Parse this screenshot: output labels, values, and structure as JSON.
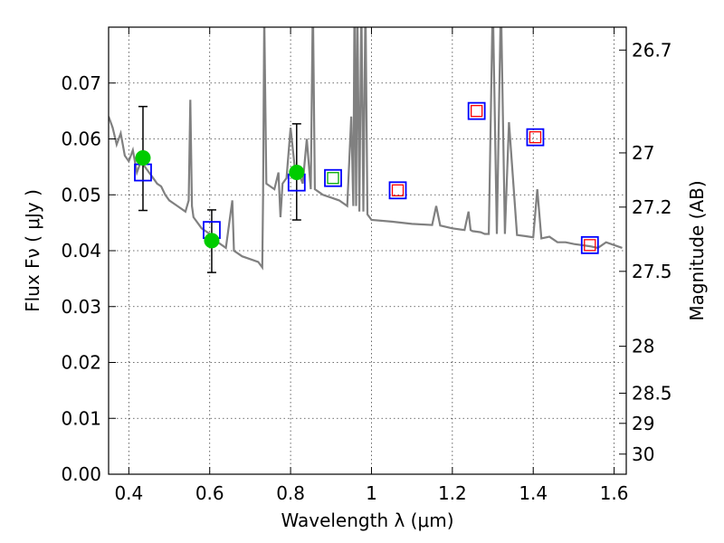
{
  "chart_data": {
    "type": "line",
    "title": "",
    "xlabel": "Wavelength  λ (μm)",
    "ylabel": "Flux  Fν  ( μJy )",
    "ylabel_right": "Magnitude (AB)",
    "xlim": [
      0.35,
      1.63
    ],
    "ylim": [
      0.0,
      0.08
    ],
    "grid": true,
    "x_ticks": [
      {
        "value": 0.4,
        "label": "0.4"
      },
      {
        "value": 0.6,
        "label": "0.6"
      },
      {
        "value": 0.8,
        "label": "0.8"
      },
      {
        "value": 1.0,
        "label": "1"
      },
      {
        "value": 1.2,
        "label": "1.2"
      },
      {
        "value": 1.4,
        "label": "1.4"
      },
      {
        "value": 1.6,
        "label": "1.6"
      }
    ],
    "y_ticks": [
      {
        "value": 0.0,
        "label": "0.00"
      },
      {
        "value": 0.01,
        "label": "0.01"
      },
      {
        "value": 0.02,
        "label": "0.02"
      },
      {
        "value": 0.03,
        "label": "0.03"
      },
      {
        "value": 0.04,
        "label": "0.04"
      },
      {
        "value": 0.05,
        "label": "0.05"
      },
      {
        "value": 0.06,
        "label": "0.06"
      },
      {
        "value": 0.07,
        "label": "0.07"
      }
    ],
    "right_ticks": [
      {
        "flux": 0.0759,
        "label": "26.7"
      },
      {
        "flux": 0.0575,
        "label": "27"
      },
      {
        "flux": 0.0478,
        "label": "27.2"
      },
      {
        "flux": 0.0363,
        "label": "27.5"
      },
      {
        "flux": 0.0229,
        "label": "28"
      },
      {
        "flux": 0.0145,
        "label": "28.5"
      },
      {
        "flux": 0.0091,
        "label": "29"
      },
      {
        "flux": 0.0036,
        "label": "30"
      }
    ],
    "series": [
      {
        "kind": "model-spectrum",
        "color": "#808080",
        "x": [
          0.35,
          0.36,
          0.37,
          0.38,
          0.39,
          0.4,
          0.41,
          0.42,
          0.43,
          0.44,
          0.45,
          0.46,
          0.47,
          0.48,
          0.49,
          0.5,
          0.52,
          0.54,
          0.548,
          0.552,
          0.556,
          0.56,
          0.58,
          0.6,
          0.62,
          0.64,
          0.656,
          0.66,
          0.68,
          0.7,
          0.72,
          0.73,
          0.732,
          0.735,
          0.74,
          0.76,
          0.77,
          0.775,
          0.78,
          0.79,
          0.8,
          0.81,
          0.82,
          0.83,
          0.84,
          0.85,
          0.855,
          0.86,
          0.87,
          0.88,
          0.9,
          0.92,
          0.94,
          0.95,
          0.955,
          0.958,
          0.962,
          0.965,
          0.97,
          0.975,
          0.98,
          0.985,
          0.99,
          1.0,
          1.05,
          1.1,
          1.15,
          1.16,
          1.17,
          1.2,
          1.23,
          1.24,
          1.245,
          1.25,
          1.27,
          1.28,
          1.29,
          1.3,
          1.31,
          1.32,
          1.33,
          1.34,
          1.36,
          1.38,
          1.4,
          1.41,
          1.42,
          1.44,
          1.46,
          1.48,
          1.5,
          1.52,
          1.54,
          1.56,
          1.58,
          1.6,
          1.62
        ],
        "y": [
          0.064,
          0.062,
          0.059,
          0.061,
          0.057,
          0.056,
          0.058,
          0.054,
          0.056,
          0.055,
          0.054,
          0.053,
          0.052,
          0.0515,
          0.05,
          0.049,
          0.048,
          0.047,
          0.049,
          0.067,
          0.048,
          0.046,
          0.044,
          0.043,
          0.0415,
          0.0405,
          0.049,
          0.04,
          0.039,
          0.0385,
          0.038,
          0.037,
          0.05,
          0.082,
          0.052,
          0.051,
          0.054,
          0.046,
          0.052,
          0.053,
          0.062,
          0.055,
          0.054,
          0.052,
          0.06,
          0.051,
          0.085,
          0.051,
          0.0505,
          0.05,
          0.0495,
          0.049,
          0.048,
          0.064,
          0.048,
          0.085,
          0.048,
          0.085,
          0.047,
          0.085,
          0.047,
          0.085,
          0.0465,
          0.0455,
          0.0452,
          0.0448,
          0.0446,
          0.048,
          0.0445,
          0.044,
          0.0437,
          0.047,
          0.0437,
          0.0435,
          0.0433,
          0.043,
          0.043,
          0.085,
          0.043,
          0.085,
          0.043,
          0.063,
          0.0428,
          0.0426,
          0.0424,
          0.051,
          0.0422,
          0.0425,
          0.0415,
          0.0415,
          0.0412,
          0.041,
          0.0408,
          0.0405,
          0.0415,
          0.041,
          0.0405
        ]
      },
      {
        "kind": "model-boxes",
        "color": "#0000ff",
        "x": [
          0.435,
          0.605,
          0.815,
          0.905,
          1.065,
          1.26,
          1.405,
          1.54
        ],
        "y": [
          0.054,
          0.0437,
          0.0522,
          0.053,
          0.0508,
          0.065,
          0.0603,
          0.041
        ]
      },
      {
        "kind": "observed",
        "color": "#00cc00",
        "x": [
          0.435,
          0.605,
          0.815
        ],
        "y": [
          0.0566,
          0.0418,
          0.054
        ],
        "yerr_low": [
          0.0472,
          0.0361,
          0.0455
        ],
        "yerr_high": [
          0.0658,
          0.0473,
          0.0627
        ]
      },
      {
        "kind": "upper-limit-boxes-green",
        "color": "#00aa00",
        "x": [
          0.905
        ],
        "y": [
          0.053
        ]
      },
      {
        "kind": "upper-limit-boxes-red",
        "color": "#ff0000",
        "x": [
          1.065,
          1.26,
          1.405,
          1.54
        ],
        "y": [
          0.0508,
          0.065,
          0.0603,
          0.041
        ]
      }
    ]
  }
}
